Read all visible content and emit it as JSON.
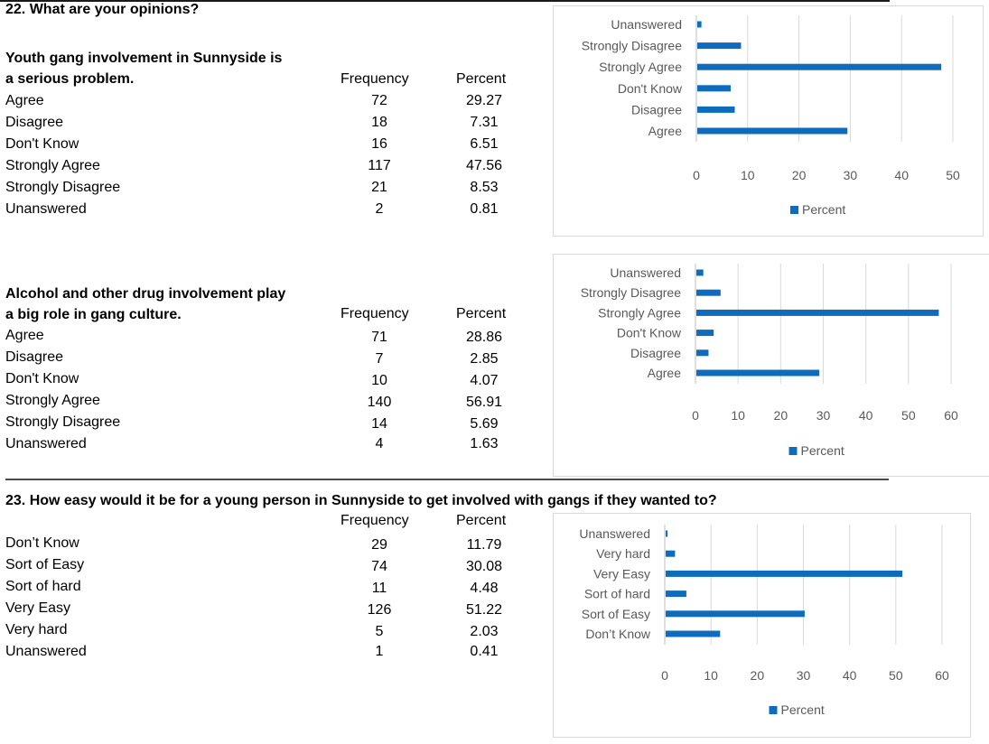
{
  "q22": {
    "title": "22. What are your opinions?",
    "s1": {
      "title_line1": "Youth gang involvement in Sunnyside is",
      "title_line2": "a serious problem.",
      "freq_header": "Frequency",
      "pct_header": "Percent",
      "rows": [
        {
          "label": "Agree",
          "freq": "72",
          "pct": "29.27"
        },
        {
          "label": "Disagree",
          "freq": "18",
          "pct": "7.31"
        },
        {
          "label": "Don't Know",
          "freq": "16",
          "pct": "6.51"
        },
        {
          "label": "Strongly Agree",
          "freq": "117",
          "pct": "47.56"
        },
        {
          "label": "Strongly Disagree",
          "freq": "21",
          "pct": "8.53"
        },
        {
          "label": "Unanswered",
          "freq": "2",
          "pct": "0.81"
        }
      ]
    },
    "s2": {
      "title_line1": "Alcohol and other drug involvement play",
      "title_line2": "a big role in gang culture.",
      "freq_header": "Frequency",
      "pct_header": "Percent",
      "rows": [
        {
          "label": "Agree",
          "freq": "71",
          "pct": "28.86"
        },
        {
          "label": "Disagree",
          "freq": "7",
          "pct": "2.85"
        },
        {
          "label": "Don't Know",
          "freq": "10",
          "pct": "4.07"
        },
        {
          "label": "Strongly Agree",
          "freq": "140",
          "pct": "56.91"
        },
        {
          "label": "Strongly Disagree",
          "freq": "14",
          "pct": "5.69"
        },
        {
          "label": "Unanswered",
          "freq": "4",
          "pct": "1.63"
        }
      ]
    }
  },
  "q23": {
    "title": "23. How easy would it be for a young person in Sunnyside to get involved with gangs if they wanted to?",
    "freq_header": "Frequency",
    "pct_header": "Percent",
    "rows": [
      {
        "label": "Don’t Know",
        "freq": "29",
        "pct": "11.79"
      },
      {
        "label": "Sort of Easy",
        "freq": "74",
        "pct": "30.08"
      },
      {
        "label": "Sort of hard",
        "freq": "11",
        "pct": "4.48"
      },
      {
        "label": "Very Easy",
        "freq": "126",
        "pct": "51.22"
      },
      {
        "label": "Very hard",
        "freq": "5",
        "pct": "2.03"
      },
      {
        "label": "Unanswered",
        "freq": "1",
        "pct": "0.41"
      }
    ]
  },
  "chart_data": [
    {
      "type": "bar",
      "orientation": "horizontal",
      "categories": [
        "Unanswered",
        "Strongly Disagree",
        "Strongly Agree",
        "Don't Know",
        "Disagree",
        "Agree"
      ],
      "series": [
        {
          "name": "Percent",
          "values": [
            0.81,
            8.53,
            47.56,
            6.51,
            7.31,
            29.27
          ],
          "color": "#0f6cbd"
        }
      ],
      "xlim": [
        0,
        50
      ],
      "ticks": [
        0,
        10,
        20,
        30,
        40,
        50
      ],
      "grid": true,
      "legend": "bottom"
    },
    {
      "type": "bar",
      "orientation": "horizontal",
      "categories": [
        "Unanswered",
        "Strongly Disagree",
        "Strongly Agree",
        "Don't Know",
        "Disagree",
        "Agree"
      ],
      "series": [
        {
          "name": "Percent",
          "values": [
            1.63,
            5.69,
            56.91,
            4.07,
            2.85,
            28.86
          ],
          "color": "#0f6cbd"
        }
      ],
      "xlim": [
        0,
        60
      ],
      "ticks": [
        0,
        10,
        20,
        30,
        40,
        50,
        60
      ],
      "grid": true,
      "legend": "bottom"
    },
    {
      "type": "bar",
      "orientation": "horizontal",
      "categories": [
        "Unanswered",
        "Very hard",
        "Very Easy",
        "Sort of hard",
        "Sort of Easy",
        "Don’t Know"
      ],
      "series": [
        {
          "name": "Percent",
          "values": [
            0.41,
            2.03,
            51.22,
            4.48,
            30.08,
            11.79
          ],
          "color": "#0f6cbd"
        }
      ],
      "xlim": [
        0,
        60
      ],
      "ticks": [
        0,
        10,
        20,
        30,
        40,
        50,
        60
      ],
      "grid": true,
      "legend": "bottom"
    }
  ]
}
